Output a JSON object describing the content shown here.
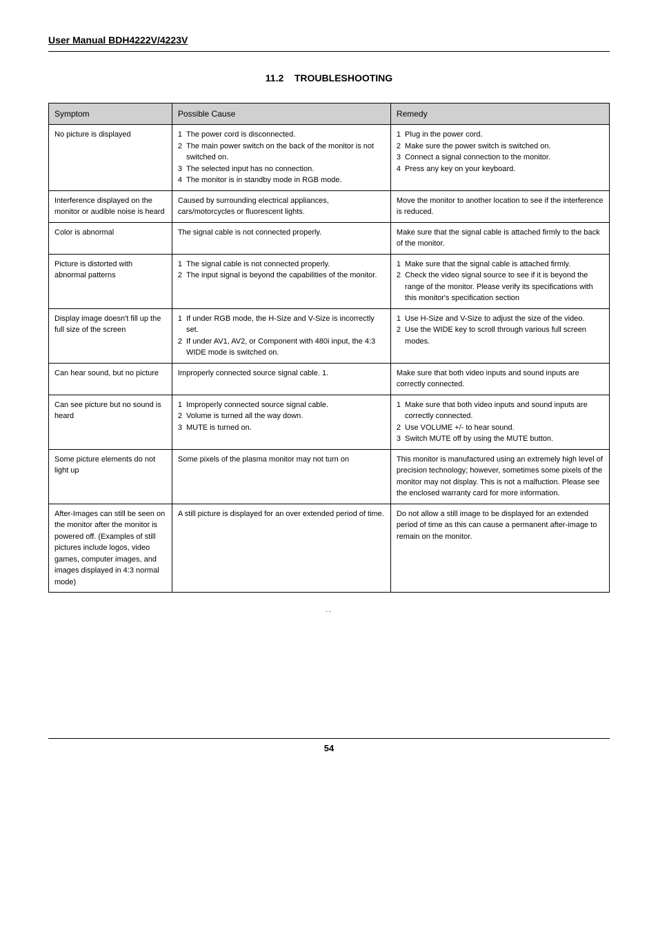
{
  "header": {
    "manual_title": "User Manual BDH4222V/4223V"
  },
  "section": {
    "number": "11.2",
    "title": "TROUBLESHOOTING"
  },
  "table": {
    "headers": {
      "symptom": "Symptom",
      "cause": "Possible Cause",
      "remedy": "Remedy"
    },
    "rows": [
      {
        "symptom": "No picture is displayed",
        "cause": [
          "The power cord is disconnected.",
          "The main power switch on the back of the monitor is not switched on.",
          "The selected input has no connection.",
          "The monitor is in standby mode in RGB mode."
        ],
        "remedy": [
          "Plug in the power cord.",
          "Make sure the power switch is switched on.",
          "Connect a signal connection to the monitor.",
          "Press any key on your keyboard."
        ]
      },
      {
        "symptom": "Interference displayed on the monitor or audible noise is heard",
        "cause_text": "Caused by surrounding electrical appliances, cars/motorcycles or fluorescent lights.",
        "remedy_text": "Move the monitor to another location to see if the interference is reduced."
      },
      {
        "symptom": "Color is abnormal",
        "cause_text": "The signal cable is not connected properly.",
        "remedy_text": "Make sure that the signal cable is attached firmly to the back of the monitor."
      },
      {
        "symptom": "Picture is distorted with abnormal patterns",
        "cause": [
          "The signal cable is not connected properly.",
          "The input signal is beyond the capabilities of the monitor."
        ],
        "remedy": [
          "Make sure that the signal cable is attached firmly.",
          "Check the video signal source to see if it is beyond the range of the monitor. Please verify its specifications with this monitor's specification section"
        ]
      },
      {
        "symptom": "Display image doesn't fill up the full size of the screen",
        "cause": [
          "If under RGB mode, the H-Size and V-Size is incorrectly set.",
          "If under AV1, AV2, or Component with 480i input, the 4:3 WIDE mode is switched on."
        ],
        "remedy": [
          "Use H-Size and V-Size to adjust the size of the video.",
          "Use the WIDE key to scroll through various full screen modes."
        ]
      },
      {
        "symptom": "Can hear sound, but no picture",
        "cause_text": "Improperly connected source signal cable. 1.",
        "remedy_text": "Make sure that both video inputs and sound inputs are correctly connected."
      },
      {
        "symptom": "Can see picture but no sound is heard",
        "cause": [
          "Improperly connected source signal cable.",
          "Volume is turned all the way down.",
          "MUTE is turned on."
        ],
        "remedy": [
          "Make sure that both video inputs and sound inputs are correctly connected.",
          "Use VOLUME +/- to hear sound.",
          "Switch MUTE off by using the MUTE button."
        ]
      },
      {
        "symptom": "Some picture elements do not light up",
        "cause_text": "Some pixels of the plasma monitor may not turn on",
        "remedy_text": "This monitor is manufactured using an extremely high level of precision technology; however, sometimes some pixels of the monitor may not display. This is not a malfuction. Please see the enclosed warranty card for more information."
      },
      {
        "symptom": "After-Images can still be seen on the monitor after the monitor is powered off. (Examples of still pictures include logos, video games, computer images, and images displayed in 4:3 normal mode)",
        "cause_text": "A still picture is displayed for an over extended period of time.",
        "remedy_text": "Do not allow a still image to be displayed for an extended period of time as this can cause a permanent after-image to remain on the monitor."
      }
    ]
  },
  "footer": {
    "page_number": "54"
  },
  "style": {
    "background_color": "#ffffff",
    "text_color": "#000000",
    "header_bg": "#d0d0d0",
    "border_color": "#000000",
    "body_font_size": 11,
    "header_font_size": 12,
    "title_font_size": 14,
    "col_widths_pct": [
      22,
      39,
      39
    ]
  }
}
